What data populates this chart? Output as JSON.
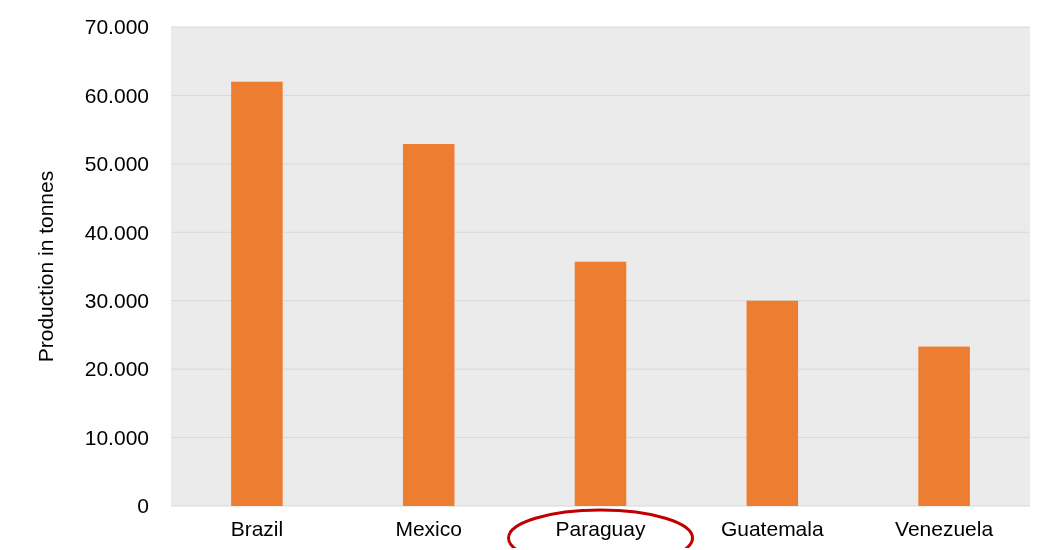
{
  "chart_data": {
    "type": "bar",
    "ylabel": "Production in tonnes",
    "categories": [
      "Brazil",
      "Mexico",
      "Paraguay",
      "Guatemala",
      "Venezuela"
    ],
    "values": [
      62000,
      52900,
      35700,
      30000,
      23300
    ],
    "color": "#ed7d31",
    "ylim": [
      0,
      70000
    ],
    "yticks": [
      0,
      {
        "value": 10000,
        "label": "10.000"
      },
      {
        "value": 20000,
        "label": "20.000"
      },
      {
        "value": 30000,
        "label": "30.000"
      },
      {
        "value": 40000,
        "label": "40.000"
      },
      {
        "value": 50000,
        "label": "50.000"
      },
      {
        "value": 60000,
        "label": "60.000"
      },
      {
        "value": 70000,
        "label": "70.000"
      }
    ],
    "grid": "y"
  }
}
